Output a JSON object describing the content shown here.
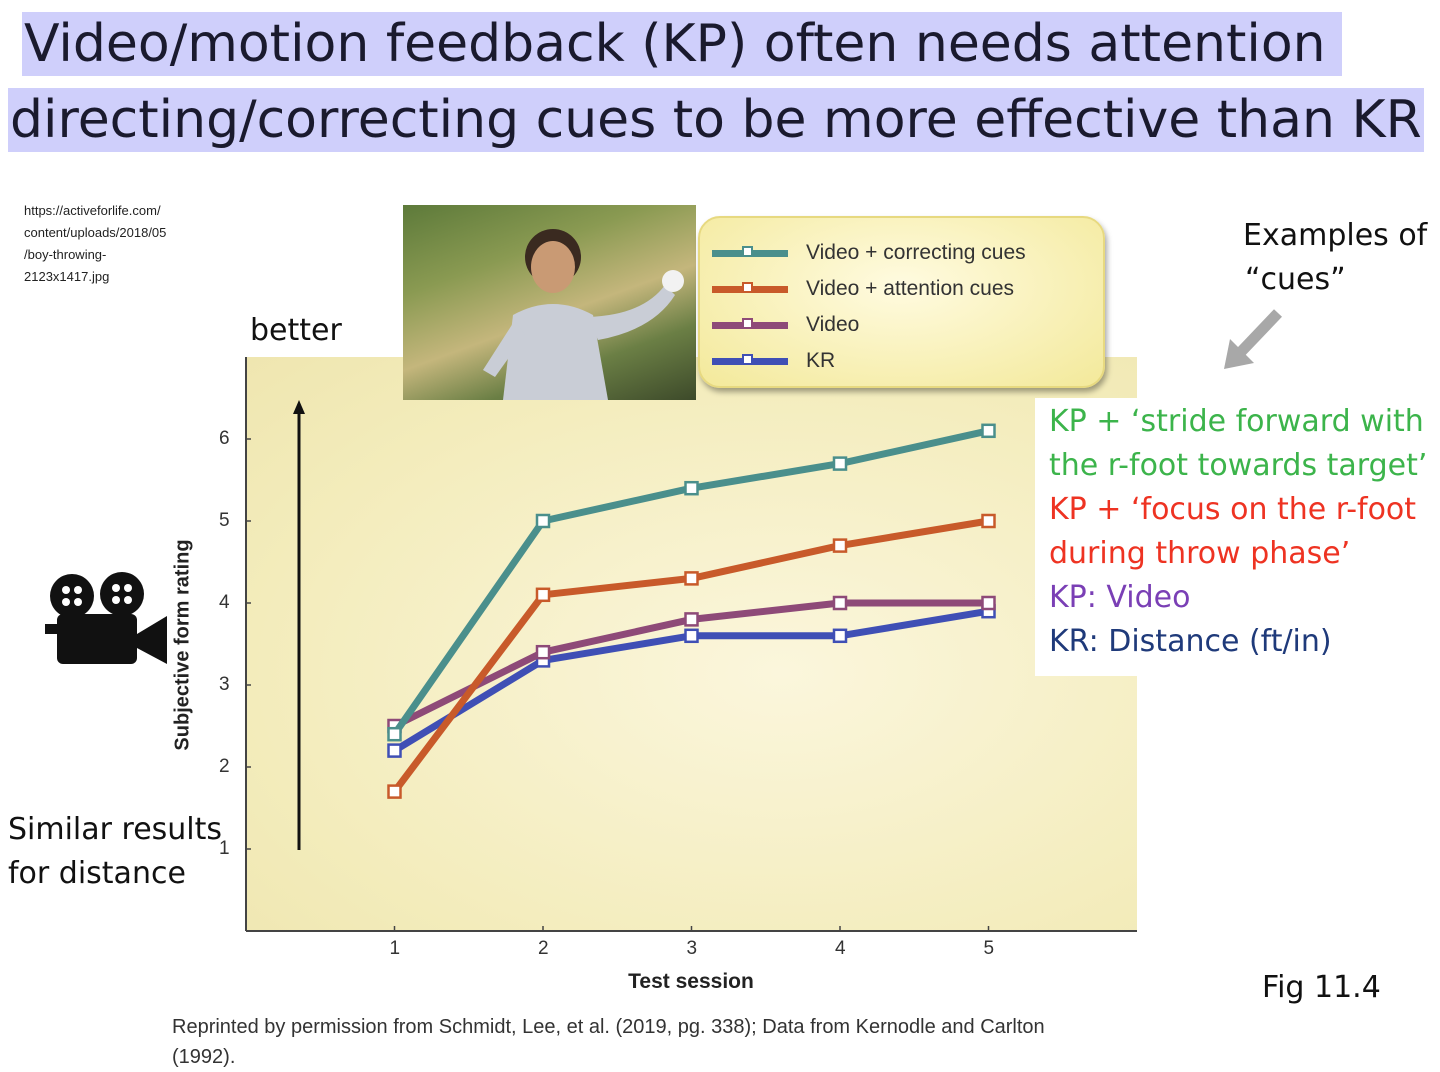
{
  "slide": {
    "title_line1": "Video/motion feedback (KP) often needs attention",
    "title_line2": "directing/correcting cues to be more effective than KR",
    "image_source": [
      "https://activeforlife.com/",
      "content/uploads/2018/05",
      "/boy-throwing-",
      "2123x1417.jpg"
    ],
    "better_label": "better",
    "cues_heading": [
      "Examples of",
      "“cues”"
    ],
    "cue_notes": [
      {
        "text": "KP + ‘stride forward with",
        "color": "#3cb44b"
      },
      {
        "text": "the r-foot towards target’",
        "color": "#3cb44b"
      },
      {
        "text": "KP + ‘focus on the r-foot",
        "color": "#ee3322"
      },
      {
        "text": "during throw phase’",
        "color": "#ee3322"
      },
      {
        "text": "KP: Video",
        "color": "#7a3fb5"
      },
      {
        "text": "KR: Distance (ft/in)",
        "color": "#1f3a7a"
      }
    ],
    "similar_note": [
      "Similar results",
      "for distance"
    ],
    "figure_label": "Fig 11.4",
    "credit": "Reprinted by permission from Schmidt, Lee, et al. (2019, pg. 338); Data from Kernodle and Carlton (1992).",
    "icons": [
      "video-camera-icon",
      "gray-arrow-down-left-icon",
      "up-arrow-icon"
    ]
  },
  "chart_data": {
    "type": "line",
    "title": "",
    "xlabel": "Test session",
    "ylabel": "Subjective form rating",
    "x": [
      1,
      2,
      3,
      4,
      5
    ],
    "xticks": [
      "1",
      "2",
      "3",
      "4",
      "5"
    ],
    "yticks": [
      "1",
      "2",
      "3",
      "4",
      "5",
      "6"
    ],
    "xlim": [
      0,
      6
    ],
    "ylim": [
      0,
      7
    ],
    "grid": false,
    "legend_position": "top-right",
    "series": [
      {
        "name": "Video + correcting cues",
        "color": "#4a8f8c",
        "values": [
          2.4,
          5.0,
          5.4,
          5.7,
          6.1
        ]
      },
      {
        "name": "Video + attention cues",
        "color": "#c85a2a",
        "values": [
          1.7,
          4.1,
          4.3,
          4.7,
          5.0
        ]
      },
      {
        "name": "Video",
        "color": "#8e4a78",
        "values": [
          2.5,
          3.4,
          3.8,
          4.0,
          4.0
        ]
      },
      {
        "name": "KR",
        "color": "#3f4fb5",
        "values": [
          2.2,
          3.3,
          3.6,
          3.6,
          3.9
        ]
      }
    ]
  }
}
